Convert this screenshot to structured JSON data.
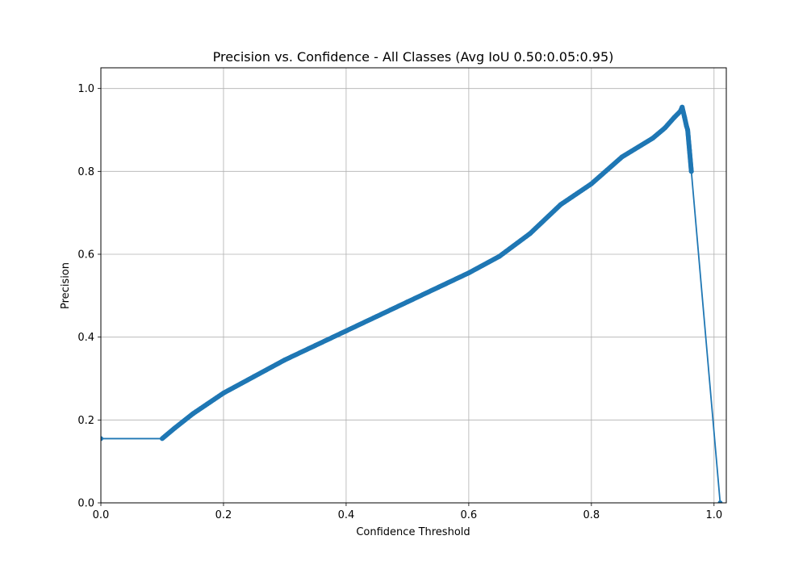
{
  "chart_data": {
    "type": "line",
    "title": "Precision vs. Confidence - All Classes (Avg IoU 0.50:0.05:0.95)",
    "xlabel": "Confidence Threshold",
    "ylabel": "Precision",
    "xlim": [
      0.0,
      1.02
    ],
    "ylim": [
      0.0,
      1.05
    ],
    "xticks": [
      0.0,
      0.2,
      0.4,
      0.6,
      0.8,
      1.0
    ],
    "xtick_labels": [
      "0.0",
      "0.2",
      "0.4",
      "0.6",
      "0.8",
      "1.0"
    ],
    "yticks": [
      0.0,
      0.2,
      0.4,
      0.6,
      0.8,
      1.0
    ],
    "ytick_labels": [
      "0.0",
      "0.2",
      "0.4",
      "0.6",
      "0.8",
      "1.0"
    ],
    "grid": true,
    "color": "#1f77b4",
    "marker": "dot",
    "series": [
      {
        "x": [
          0.0,
          0.1,
          0.12,
          0.15,
          0.2,
          0.25,
          0.3,
          0.35,
          0.4,
          0.45,
          0.5,
          0.55,
          0.6,
          0.65,
          0.7,
          0.75,
          0.8,
          0.85,
          0.9,
          0.92,
          0.935,
          0.945,
          0.948,
          0.952,
          0.955,
          0.957,
          0.96,
          0.963,
          1.01
        ],
        "y": [
          0.155,
          0.155,
          0.18,
          0.215,
          0.265,
          0.305,
          0.345,
          0.38,
          0.415,
          0.45,
          0.485,
          0.52,
          0.555,
          0.595,
          0.65,
          0.72,
          0.77,
          0.835,
          0.88,
          0.905,
          0.93,
          0.945,
          0.955,
          0.93,
          0.91,
          0.9,
          0.85,
          0.8,
          0.0
        ]
      }
    ]
  }
}
